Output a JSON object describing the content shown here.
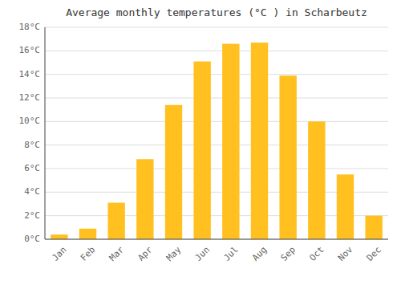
{
  "chart_data": {
    "type": "bar",
    "title": "Average monthly temperatures (°C ) in Scharbeutz",
    "categories": [
      "Jan",
      "Feb",
      "Mar",
      "Apr",
      "May",
      "Jun",
      "Jul",
      "Aug",
      "Sep",
      "Oct",
      "Nov",
      "Dec"
    ],
    "values": [
      0.4,
      0.9,
      3.1,
      6.8,
      11.4,
      15.1,
      16.6,
      16.7,
      13.9,
      10.0,
      5.5,
      2.0
    ],
    "color": "#FFC020",
    "ylim": [
      0,
      18
    ],
    "yticks": [
      {
        "value": 0,
        "label": "0°C"
      },
      {
        "value": 2,
        "label": "2°C"
      },
      {
        "value": 4,
        "label": "4°C"
      },
      {
        "value": 6,
        "label": "6°C"
      },
      {
        "value": 8,
        "label": "8°C"
      },
      {
        "value": 10,
        "label": "10°C"
      },
      {
        "value": 12,
        "label": "12°C"
      },
      {
        "value": 14,
        "label": "14°C"
      },
      {
        "value": 16,
        "label": "16°C"
      },
      {
        "value": 18,
        "label": "18°C"
      }
    ],
    "grid": true
  }
}
